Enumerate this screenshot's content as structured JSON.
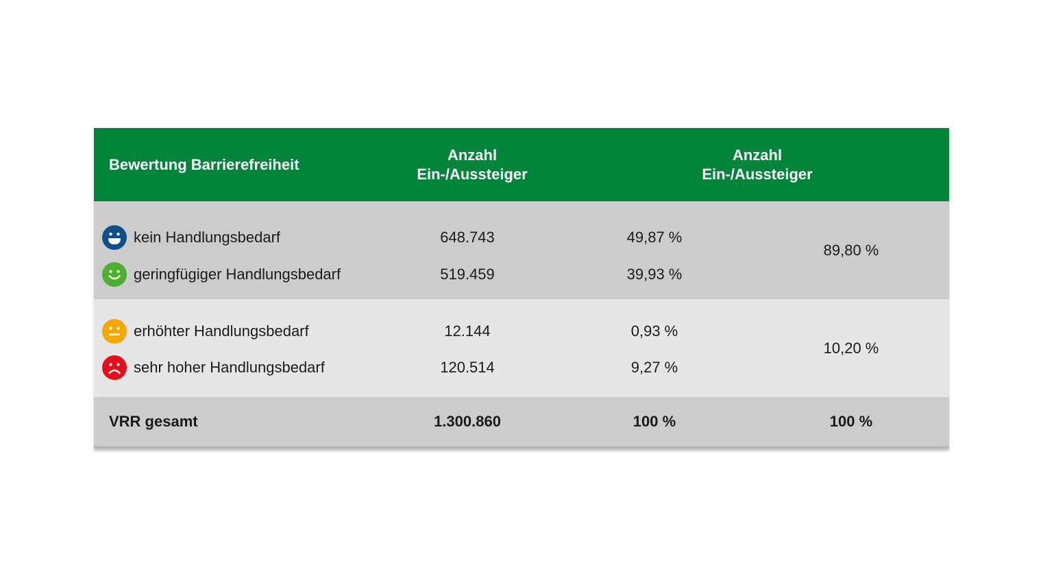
{
  "header": {
    "col_label": "Bewertung Barrierefreiheit",
    "col_count_line1": "Anzahl",
    "col_count_line2": "Ein-/Aussteiger",
    "col_share_line1": "Anzahl",
    "col_share_line2": "Ein-/Aussteiger"
  },
  "groups": [
    {
      "combined": "89,80 %",
      "rows": [
        {
          "icon": "happy-face-icon",
          "color": "#0d4f8b",
          "label": "kein Handlungsbedarf",
          "count": "648.743",
          "percent": "49,87 %"
        },
        {
          "icon": "smile-face-icon",
          "color": "#4caf2e",
          "label": "geringfügiger Handlungsbedarf",
          "count": "519.459",
          "percent": "39,93 %"
        }
      ]
    },
    {
      "combined": "10,20 %",
      "rows": [
        {
          "icon": "neutral-face-icon",
          "color": "#f5a700",
          "label": "erhöhter Handlungsbedarf",
          "count": "12.144",
          "percent": "0,93 %"
        },
        {
          "icon": "sad-face-icon",
          "color": "#e3101b",
          "label": "sehr hoher Handlungsbedarf",
          "count": "120.514",
          "percent": "9,27 %"
        }
      ]
    }
  ],
  "total": {
    "label": "VRR gesamt",
    "count": "1.300.860",
    "percent": "100 %",
    "combined": "100 %"
  },
  "colors": {
    "header_green": "#02843b",
    "group_dark": "#cccccc",
    "group_light": "#e6e6e6"
  }
}
